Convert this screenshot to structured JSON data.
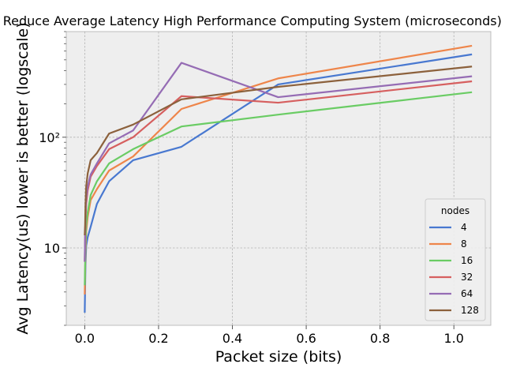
{
  "chart_data": {
    "type": "line",
    "title": "Reduce Average Latency High Performance Computing System (microseconds) across",
    "xlabel": "Packet size (bits)",
    "ylabel": "Avg Latency(us) lower is better (logscale)",
    "xlim": [
      -0.05,
      1.1
    ],
    "ylim": [
      2,
      900
    ],
    "yscale": "log",
    "grid": true,
    "x_ticks": [
      "0.0",
      "0.2",
      "0.4",
      "0.6",
      "0.8",
      "1.0"
    ],
    "y_ticks": [
      "10",
      "10²"
    ],
    "legend": {
      "title": "nodes",
      "placement": "lower-right"
    },
    "x": [
      0.0,
      0.001,
      0.002,
      0.004,
      0.008,
      0.016,
      0.033,
      0.066,
      0.131,
      0.262,
      0.524,
      1.049
    ],
    "series": [
      {
        "name": "4",
        "color": "#4878d0",
        "values": [
          2.6,
          4.3,
          7.0,
          10.5,
          12.5,
          15.5,
          25.0,
          40.0,
          62.0,
          82.0,
          300.0,
          560.0
        ]
      },
      {
        "name": "8",
        "color": "#ee854a",
        "values": [
          3.8,
          6.0,
          9.0,
          14.0,
          19.0,
          27.0,
          34.0,
          50.0,
          67.0,
          180.0,
          340.0,
          670.0
        ]
      },
      {
        "name": "16",
        "color": "#6acc64",
        "values": [
          4.6,
          7.0,
          11.0,
          16.0,
          21.0,
          30.0,
          40.0,
          58.0,
          78.0,
          125.0,
          160.0,
          255.0
        ]
      },
      {
        "name": "32",
        "color": "#d65f5f",
        "values": [
          7.5,
          12.0,
          18.0,
          25.0,
          33.0,
          44.0,
          55.0,
          78.0,
          100.0,
          235.0,
          205.0,
          320.0
        ]
      },
      {
        "name": "64",
        "color": "#956cb4",
        "values": [
          7.5,
          13.0,
          20.0,
          28.0,
          36.0,
          46.0,
          58.0,
          88.0,
          115.0,
          470.0,
          230.0,
          355.0
        ]
      },
      {
        "name": "128",
        "color": "#8c613c",
        "values": [
          13.0,
          16.0,
          24.0,
          36.0,
          47.0,
          62.0,
          72.0,
          108.0,
          130.0,
          220.0,
          285.0,
          435.0
        ]
      }
    ]
  }
}
